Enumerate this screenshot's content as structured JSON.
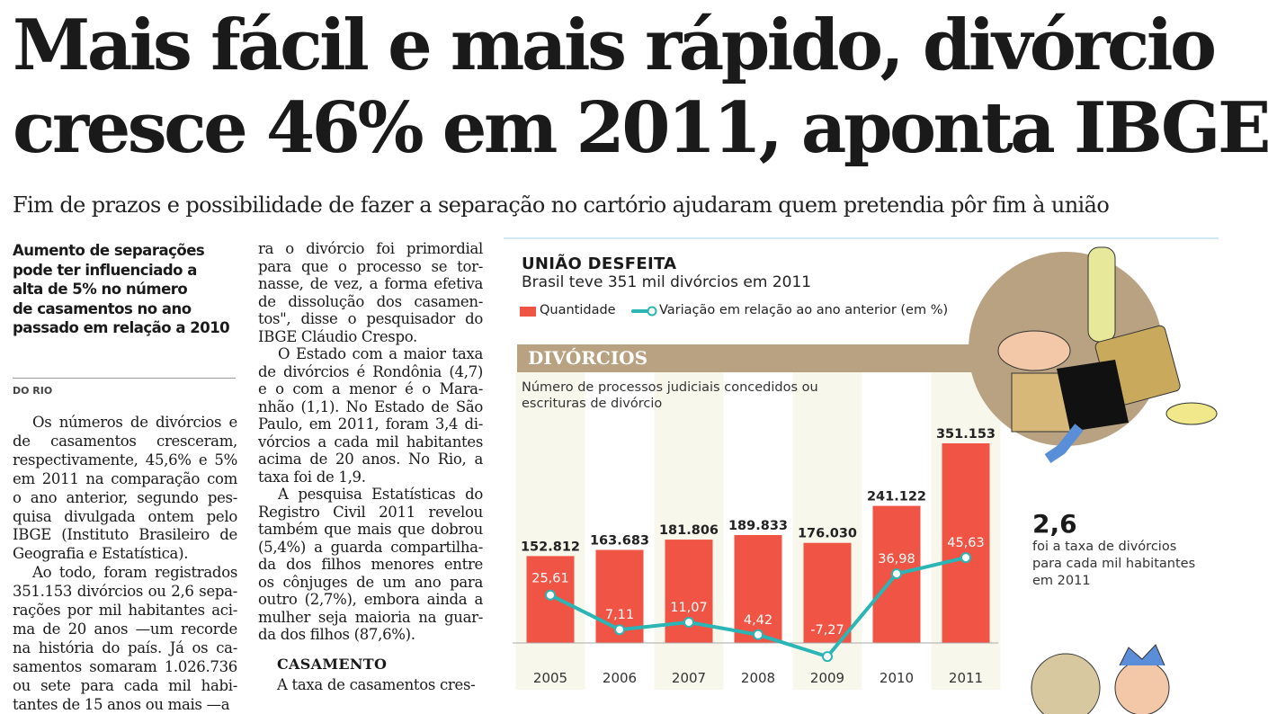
{
  "headline": {
    "line1": "Mais fácil e mais rápido, divórcio",
    "line2": "cresce 46% em 2011, aponta IBGE"
  },
  "subheadline": "Fim de prazos e possibilidade de fazer a separação no cartório ajudaram quem pretendia pôr fim à união",
  "deck": [
    "Aumento de separações",
    "pode ter influenciado a",
    "alta de 5% no número",
    "de casamentos no ano",
    "passado em relação a 2010"
  ],
  "byline": "DO RIO",
  "column1": [
    {
      "indent": true,
      "lines": [
        "Os números de divórcios e",
        "de casamentos cresceram,",
        "respectivamente, 45,6% e 5%",
        "em 2011 na comparação com",
        "o ano anterior, segundo pes-",
        "quisa divulgada ontem pelo",
        "IBGE (Instituto Brasileiro de",
        "Geografia e Estatística)."
      ]
    },
    {
      "indent": true,
      "lines": [
        "Ao todo, foram registrados",
        "351.153 divórcios ou 2,6 sepa-",
        "rações por mil habitantes aci-",
        "ma de 20 anos —um recorde",
        "na história do país. Já os ca-",
        "samentos somaram 1.026.736",
        "ou sete para cada mil habi-",
        "tantes de 15 anos ou mais —a"
      ]
    }
  ],
  "column2": [
    {
      "indent": false,
      "lines": [
        "ra o divórcio foi primordial",
        "para que o processo se tor-",
        "nasse, de vez, a forma efetiva",
        "de dissolução dos casamen-",
        "tos\", disse o pesquisador do",
        "IBGE Cláudio Crespo."
      ]
    },
    {
      "indent": true,
      "lines": [
        "O Estado com a maior taxa",
        "de divórcios é Rondônia (4,7)",
        "e o com a menor é o Mara-",
        "nhão (1,1). No Estado de São",
        "Paulo, em 2011, foram 3,4 di-",
        "vórcios a cada mil habitantes",
        "acima de 20 anos. No Rio, a",
        "taxa foi de 1,9."
      ]
    },
    {
      "indent": true,
      "lines": [
        "A pesquisa Estatísticas do",
        "Registro Civil 2011 revelou",
        "também que mais que dobrou",
        "(5,4%) a guarda compartilha-",
        "da dos filhos menores entre",
        "os cônjuges de um ano para",
        "outro (2,7%), embora ainda a",
        "mulher seja maioria na guar-",
        "da dos filhos (87,6%)."
      ]
    }
  ],
  "section_heading": "CASAMENTO",
  "section_first_line": "A taxa de casamentos cres-",
  "infographic": {
    "title": "UNIÃO DESFEITA",
    "subtitle": "Brasil teve 351 mil divórcios em 2011",
    "legend_bar": "Quantidade",
    "legend_line": "Variação em relação ao ano anterior (em %)",
    "band_title": "DIVÓRCIOS",
    "description": [
      "Número de processos judiciais concedidos ou",
      "escrituras de divórcio"
    ],
    "stat_value": "2,6",
    "stat_text": [
      "foi a taxa de divórcios",
      "para cada mil habitantes",
      "em 2011"
    ]
  },
  "colors": {
    "bar": "#f05444",
    "line": "#2bb5b5",
    "band": "#b8a282",
    "stripe": "#f8f7ec",
    "rule": "#cde9f3"
  },
  "chart_data": {
    "type": "bar",
    "title": "DIVÓRCIOS",
    "categories": [
      "2005",
      "2006",
      "2007",
      "2008",
      "2009",
      "2010",
      "2011"
    ],
    "series": [
      {
        "name": "Quantidade",
        "type": "bar",
        "values": [
          152812,
          163683,
          181806,
          189833,
          176030,
          241122,
          351153
        ],
        "labels": [
          "152.812",
          "163.683",
          "181.806",
          "189.833",
          "176.030",
          "241.122",
          "351.153"
        ]
      },
      {
        "name": "Variação em relação ao ano anterior (em %)",
        "type": "line",
        "values": [
          25.61,
          7.11,
          11.07,
          4.42,
          -7.27,
          36.98,
          45.63
        ],
        "labels": [
          "25,61",
          "7,11",
          "11,07",
          "4,42",
          "-7,27",
          "36,98",
          "45,63"
        ]
      }
    ],
    "xlabel": "",
    "ylabel": "",
    "grid": false,
    "legend": "top-left"
  }
}
